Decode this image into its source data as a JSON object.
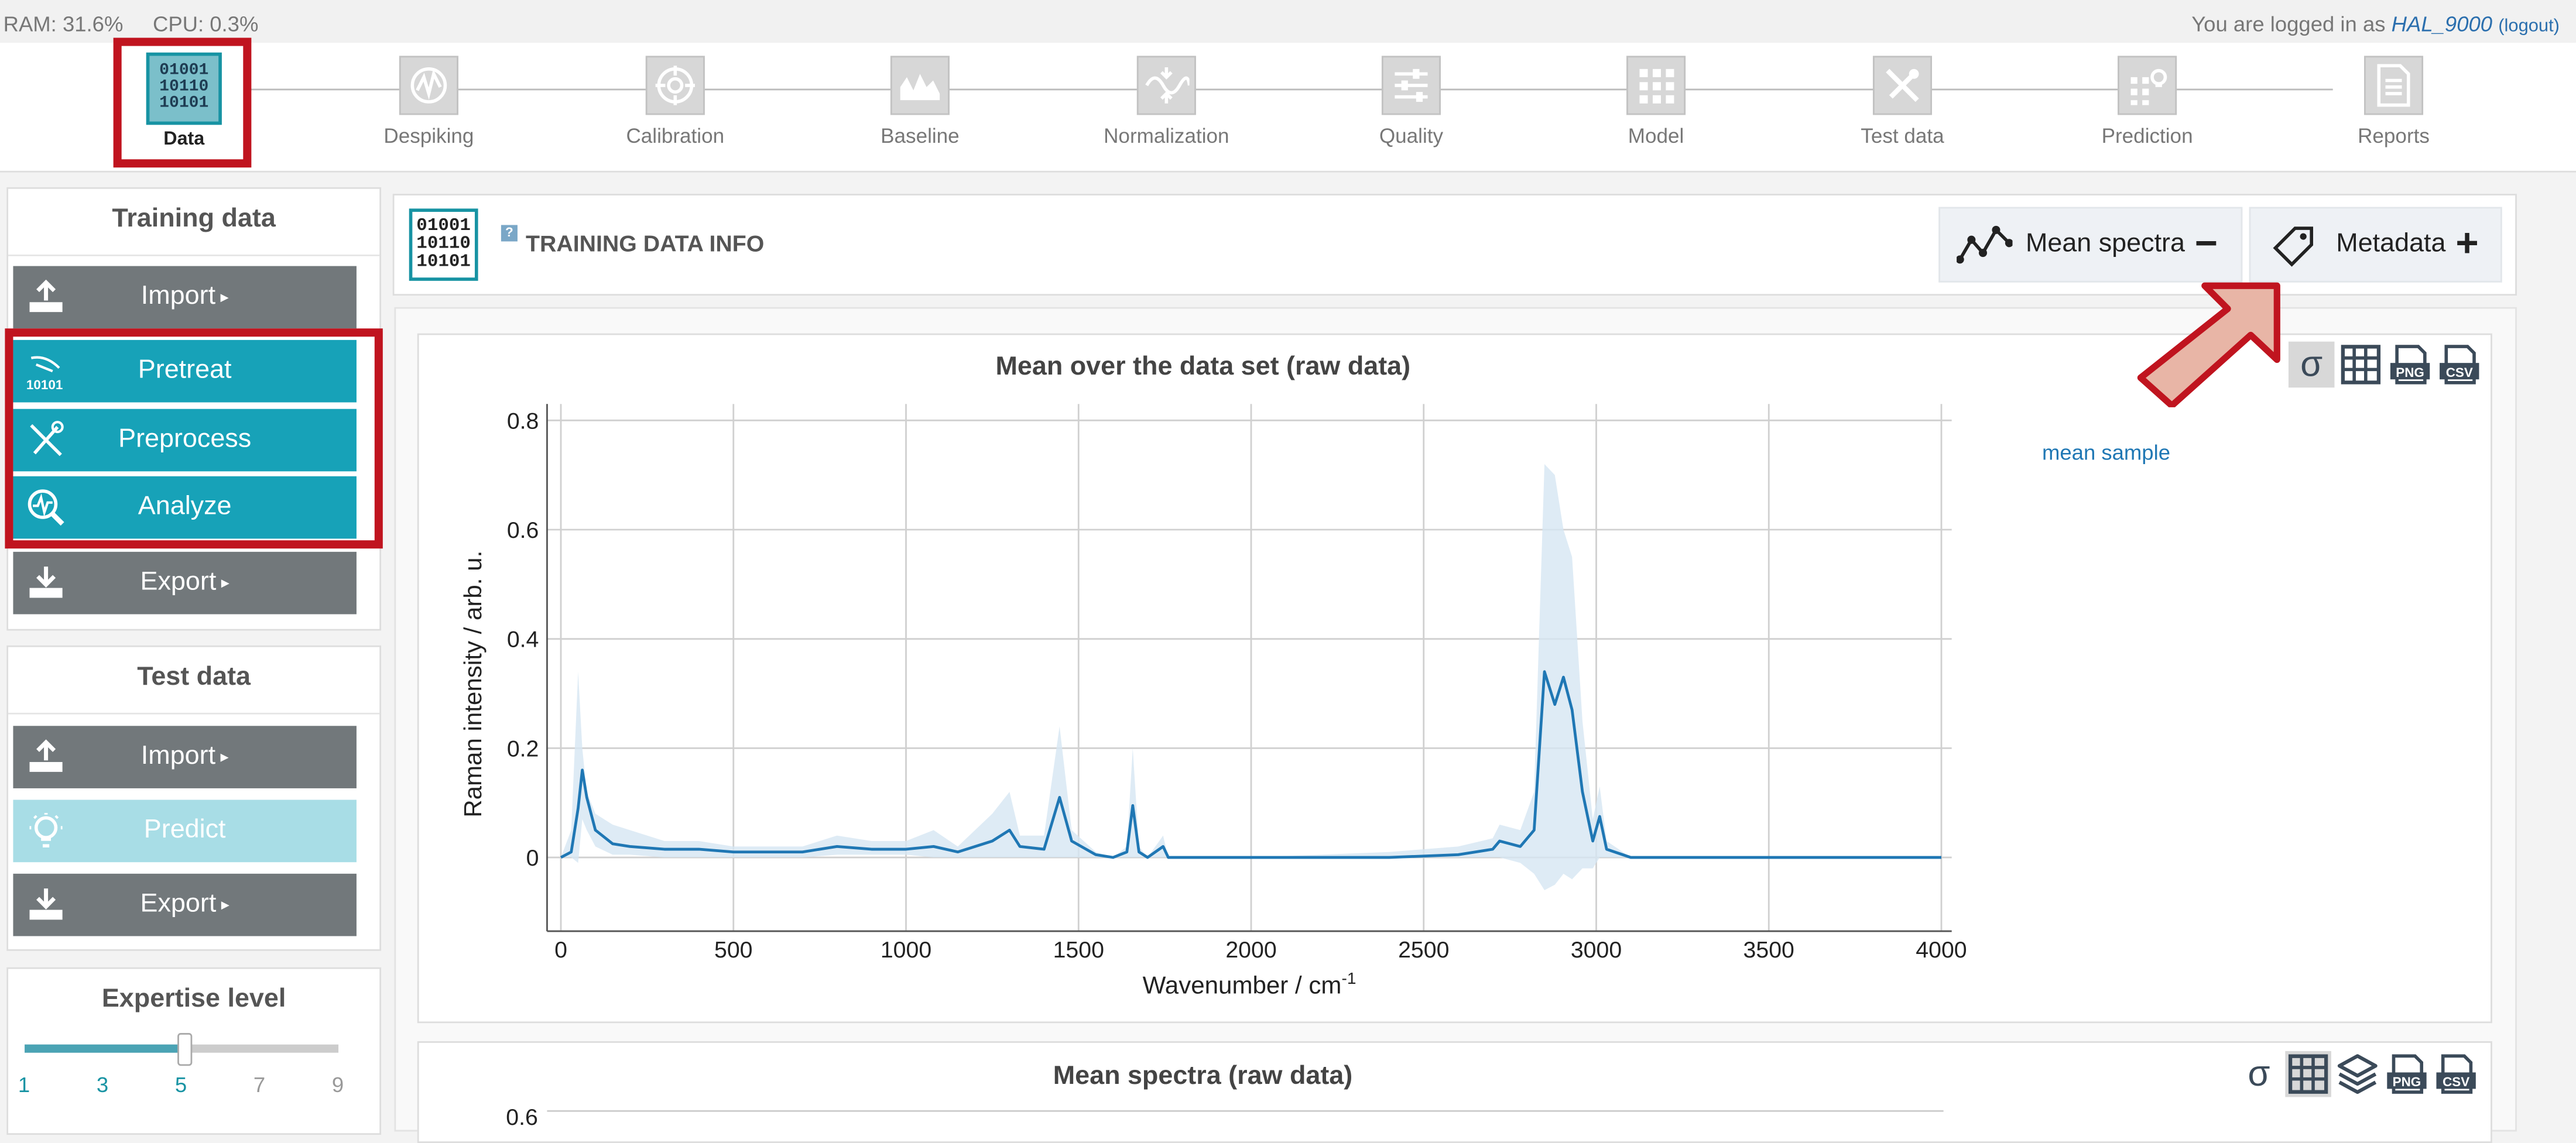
{
  "status": {
    "ram": "RAM: 31.6%",
    "cpu": "CPU: 0.3%",
    "login_prefix": "You are logged in as",
    "user": "HAL_9000",
    "logout": "(logout)"
  },
  "workflow": {
    "steps": [
      {
        "label": "Data",
        "icon": "data-binary-icon"
      },
      {
        "label": "Despiking",
        "icon": "despiking-icon"
      },
      {
        "label": "Calibration",
        "icon": "calibration-target-icon"
      },
      {
        "label": "Baseline",
        "icon": "baseline-icon"
      },
      {
        "label": "Normalization",
        "icon": "normalization-icon"
      },
      {
        "label": "Quality",
        "icon": "quality-sliders-icon"
      },
      {
        "label": "Model",
        "icon": "model-grid-icon"
      },
      {
        "label": "Test data",
        "icon": "test-data-icon"
      },
      {
        "label": "Prediction",
        "icon": "prediction-icon"
      },
      {
        "label": "Reports",
        "icon": "reports-icon"
      }
    ],
    "binary": [
      "01001",
      "10110",
      "10101"
    ]
  },
  "training": {
    "title": "Training data",
    "import": "Import",
    "pretreat": "Pretreat",
    "preprocess": "Preprocess",
    "analyze": "Analyze",
    "export": "Export",
    "pretreat_icon_text": "10101"
  },
  "test": {
    "title": "Test data",
    "import": "Import",
    "predict": "Predict",
    "export": "Export"
  },
  "expertise": {
    "title": "Expertise level",
    "levels": [
      "1",
      "3",
      "5",
      "7",
      "9"
    ],
    "value": 5
  },
  "info": {
    "help": "?",
    "title": "TRAINING DATA INFO",
    "mean_spectra": "Mean spectra",
    "mean_spectra_sym": "−",
    "metadata": "Metadata",
    "metadata_sym": "+"
  },
  "tools": {
    "sigma": "σ",
    "png": "PNG",
    "csv": "CSV"
  },
  "chart2": {
    "title": "Mean spectra (raw data)",
    "y_tick_partial": "0.6"
  },
  "colors": {
    "accent": "#17a2b8",
    "line": "#1f77b4",
    "band": "#d6e6f3",
    "highlight": "#c0141f",
    "arrow": "#e8b5a6"
  },
  "chart_data": {
    "type": "line",
    "title": "Mean over the data set (raw data)",
    "xlabel": "Wavenumber / cm",
    "xlabel_sup": "-1",
    "ylabel": "Raman intensity / arb. u.",
    "xlim": [
      -40,
      4030
    ],
    "ylim": [
      -0.135,
      0.83
    ],
    "xticks": [
      0,
      500,
      1000,
      1500,
      2000,
      2500,
      3000,
      3500,
      4000
    ],
    "yticks": [
      0,
      0.2,
      0.4,
      0.6,
      0.8
    ],
    "ytick_labels": [
      "0",
      "0.2",
      "0.4",
      "0.6",
      "0.8"
    ],
    "grid": true,
    "legend": "top-right",
    "series": [
      {
        "name": "mean sample",
        "x": [
          0,
          30,
          50,
          62,
          75,
          100,
          150,
          200,
          300,
          400,
          500,
          700,
          800,
          900,
          1000,
          1080,
          1150,
          1250,
          1300,
          1330,
          1400,
          1445,
          1480,
          1550,
          1600,
          1640,
          1657,
          1675,
          1700,
          1745,
          1760,
          1800,
          2000,
          2400,
          2600,
          2700,
          2720,
          2780,
          2820,
          2850,
          2880,
          2905,
          2930,
          2960,
          2990,
          3010,
          3030,
          3100,
          3500,
          4000
        ],
        "y": [
          0.0,
          0.01,
          0.09,
          0.16,
          0.11,
          0.05,
          0.025,
          0.02,
          0.015,
          0.015,
          0.01,
          0.01,
          0.02,
          0.015,
          0.015,
          0.02,
          0.01,
          0.03,
          0.05,
          0.02,
          0.015,
          0.11,
          0.03,
          0.005,
          0.0,
          0.01,
          0.095,
          0.01,
          0.0,
          0.02,
          0.0,
          0.0,
          0.0,
          0.0,
          0.005,
          0.015,
          0.03,
          0.02,
          0.05,
          0.34,
          0.28,
          0.33,
          0.27,
          0.12,
          0.03,
          0.075,
          0.015,
          0.0,
          0.0,
          0.0
        ],
        "upper": [
          0.0,
          0.05,
          0.34,
          0.2,
          0.12,
          0.08,
          0.06,
          0.05,
          0.03,
          0.03,
          0.02,
          0.02,
          0.04,
          0.03,
          0.03,
          0.05,
          0.02,
          0.08,
          0.12,
          0.04,
          0.04,
          0.24,
          0.05,
          0.01,
          0.0,
          0.02,
          0.2,
          0.02,
          0.0,
          0.04,
          0.0,
          0.0,
          0.0,
          0.01,
          0.02,
          0.035,
          0.06,
          0.05,
          0.12,
          0.72,
          0.7,
          0.6,
          0.55,
          0.25,
          0.07,
          0.13,
          0.03,
          0.0,
          0.0,
          0.0
        ],
        "lower": [
          0.0,
          0.0,
          -0.01,
          0.07,
          0.05,
          0.02,
          0.005,
          0.005,
          0.0,
          0.0,
          0.0,
          0.0,
          0.005,
          0.005,
          0.005,
          0.0,
          0.0,
          0.0,
          0.0,
          0.0,
          0.0,
          0.0,
          0.0,
          0.0,
          0.0,
          0.0,
          0.0,
          0.0,
          0.0,
          0.0,
          0.0,
          0.0,
          0.0,
          0.0,
          0.0,
          0.0,
          0.0,
          -0.01,
          -0.03,
          -0.06,
          -0.05,
          -0.03,
          -0.04,
          -0.02,
          -0.02,
          0.0,
          0.0,
          0.0,
          0.0,
          0.0
        ]
      }
    ]
  }
}
